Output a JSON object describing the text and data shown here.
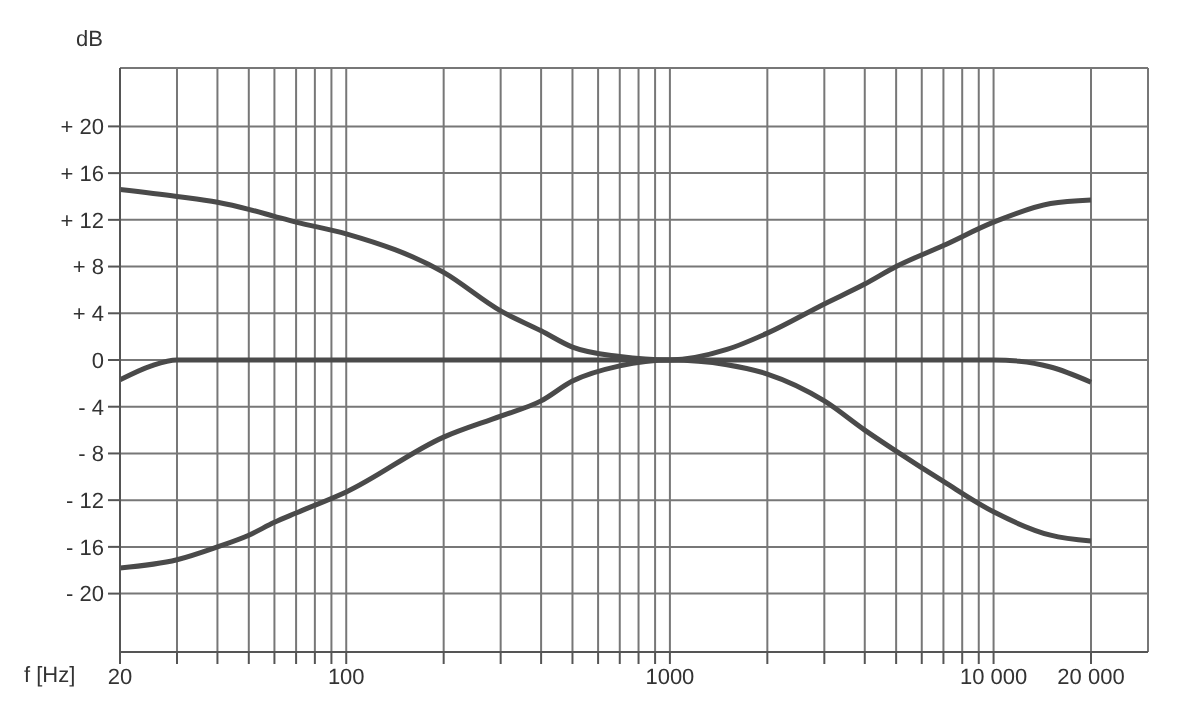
{
  "chart_data": {
    "type": "line",
    "xlabel": "f [Hz]",
    "ylabel": "dB",
    "log": "x",
    "grid": true,
    "marker": "none",
    "line_style": "solid",
    "xlim": [
      20,
      30000
    ],
    "ylim": [
      -25,
      25
    ],
    "xticks": [
      20,
      {
        "value": 30,
        "label": null
      },
      {
        "value": 40,
        "label": null
      },
      {
        "value": 50,
        "label": null
      },
      {
        "value": 60,
        "label": null
      },
      {
        "value": 70,
        "label": null
      },
      {
        "value": 80,
        "label": null
      },
      {
        "value": 90,
        "label": null
      },
      100,
      {
        "value": 200,
        "label": null
      },
      {
        "value": 300,
        "label": null
      },
      {
        "value": 400,
        "label": null
      },
      {
        "value": 500,
        "label": null
      },
      {
        "value": 600,
        "label": null
      },
      {
        "value": 700,
        "label": null
      },
      {
        "value": 800,
        "label": null
      },
      {
        "value": 900,
        "label": null
      },
      1000,
      {
        "value": 2000,
        "label": null
      },
      {
        "value": 3000,
        "label": null
      },
      {
        "value": 4000,
        "label": null
      },
      {
        "value": 5000,
        "label": null
      },
      {
        "value": 6000,
        "label": null
      },
      {
        "value": 7000,
        "label": null
      },
      {
        "value": 8000,
        "label": null
      },
      {
        "value": 9000,
        "label": null
      },
      {
        "value": 10000,
        "label": "10 000"
      },
      {
        "value": 20000,
        "label": "20 000"
      }
    ],
    "yticks": [
      {
        "value": -20,
        "label": "- 20"
      },
      {
        "value": -16,
        "label": "- 16"
      },
      {
        "value": -12,
        "label": "- 12"
      },
      {
        "value": -8,
        "label": "- 8"
      },
      {
        "value": -4,
        "label": "- 4"
      },
      0,
      {
        "value": 4,
        "label": "+ 4"
      },
      {
        "value": 8,
        "label": "+ 8"
      },
      {
        "value": 12,
        "label": "+ 12"
      },
      {
        "value": 16,
        "label": "+ 16"
      },
      {
        "value": 20,
        "label": "+ 20"
      }
    ],
    "series": [
      {
        "color": "#4a4a4a",
        "x": [
          20,
          30,
          40,
          50,
          60,
          70,
          100,
          200,
          300,
          400,
          500,
          700,
          1000,
          1500,
          2000,
          3000,
          4000,
          5000,
          7000,
          10000,
          15000,
          20000
        ],
        "values": [
          14.6,
          14.0,
          13.5,
          12.9,
          12.3,
          11.8,
          10.8,
          7.5,
          4.2,
          2.5,
          1.1,
          0.3,
          0,
          0.9,
          2.3,
          4.8,
          6.5,
          8.0,
          9.8,
          11.8,
          13.4,
          13.7
        ]
      },
      {
        "color": "#4a4a4a",
        "x": [
          20,
          25,
          30,
          50,
          100,
          1000,
          10000,
          12000,
          15000,
          20000
        ],
        "values": [
          -1.7,
          -0.5,
          0,
          0,
          0,
          0,
          0,
          -0.1,
          -0.6,
          -1.9
        ]
      },
      {
        "color": "#4a4a4a",
        "x": [
          20,
          30,
          40,
          50,
          60,
          70,
          100,
          200,
          300,
          400,
          500,
          700,
          1000,
          1500,
          2000,
          3000,
          4000,
          5000,
          7000,
          10000,
          15000,
          20000
        ],
        "values": [
          -17.8,
          -17.1,
          -16.0,
          -15.0,
          -13.9,
          -13.1,
          -11.3,
          -6.6,
          -4.8,
          -3.5,
          -1.8,
          -0.5,
          0,
          -0.4,
          -1.2,
          -3.5,
          -6.0,
          -7.8,
          -10.4,
          -13.0,
          -15.0,
          -15.5
        ]
      }
    ]
  }
}
